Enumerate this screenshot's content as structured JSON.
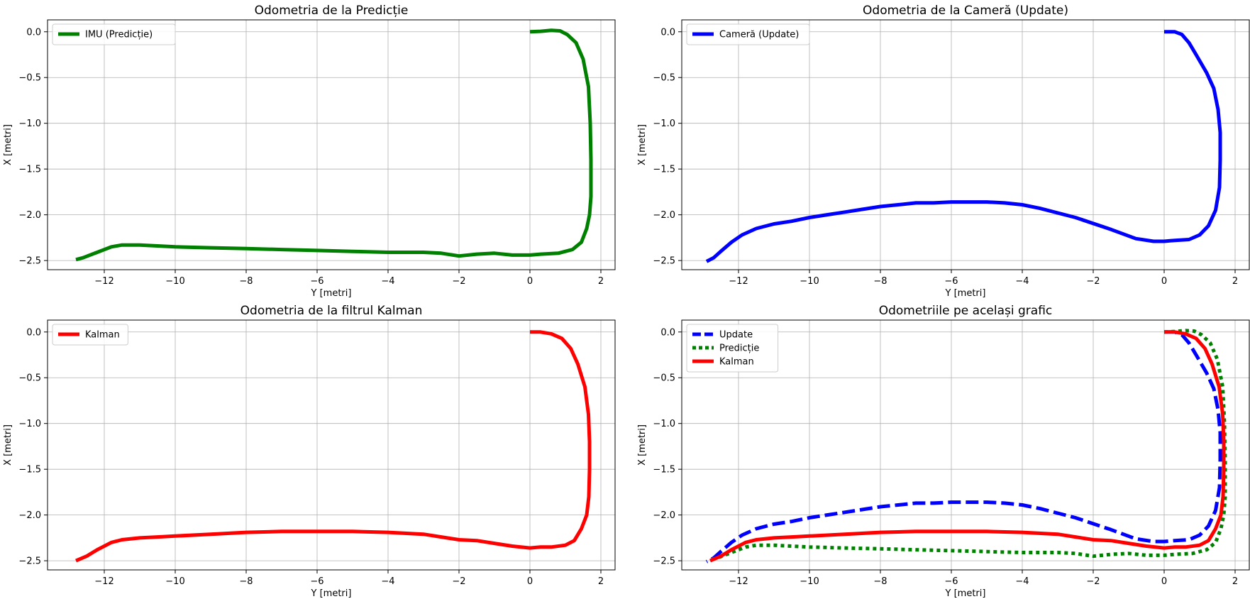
{
  "chart_data": [
    {
      "type": "line",
      "title": "Odometria de la Predicție",
      "xlabel": "Y [metri]",
      "ylabel": "X [metri]",
      "xlim": [
        -13.6,
        2.4
      ],
      "ylim": [
        -2.6,
        0.13
      ],
      "xticks": [
        -12,
        -10,
        -8,
        -6,
        -4,
        -2,
        0,
        2
      ],
      "yticks": [
        0.0,
        -0.5,
        -1.0,
        -1.5,
        -2.0,
        -2.5
      ],
      "grid": true,
      "legend_position": "upper-left",
      "series": [
        {
          "name": "IMU (Predicție)",
          "color": "#008000",
          "dash": "solid",
          "points": [
            [
              0,
              0
            ],
            [
              0.3,
              0.005
            ],
            [
              0.6,
              0.015
            ],
            [
              0.85,
              0.01
            ],
            [
              1.05,
              -0.03
            ],
            [
              1.3,
              -0.12
            ],
            [
              1.5,
              -0.3
            ],
            [
              1.65,
              -0.6
            ],
            [
              1.7,
              -1.0
            ],
            [
              1.72,
              -1.4
            ],
            [
              1.72,
              -1.8
            ],
            [
              1.68,
              -2.0
            ],
            [
              1.6,
              -2.15
            ],
            [
              1.45,
              -2.3
            ],
            [
              1.2,
              -2.38
            ],
            [
              0.8,
              -2.42
            ],
            [
              0.3,
              -2.43
            ],
            [
              0,
              -2.44
            ],
            [
              -0.5,
              -2.44
            ],
            [
              -1,
              -2.42
            ],
            [
              -1.5,
              -2.43
            ],
            [
              -2,
              -2.45
            ],
            [
              -2.5,
              -2.42
            ],
            [
              -3,
              -2.41
            ],
            [
              -4,
              -2.41
            ],
            [
              -5,
              -2.4
            ],
            [
              -6,
              -2.39
            ],
            [
              -7,
              -2.38
            ],
            [
              -8,
              -2.37
            ],
            [
              -9,
              -2.36
            ],
            [
              -10,
              -2.35
            ],
            [
              -10.5,
              -2.34
            ],
            [
              -11,
              -2.33
            ],
            [
              -11.5,
              -2.33
            ],
            [
              -11.8,
              -2.35
            ],
            [
              -12.2,
              -2.41
            ],
            [
              -12.6,
              -2.47
            ],
            [
              -12.8,
              -2.49
            ]
          ]
        }
      ]
    },
    {
      "type": "line",
      "title": "Odometria de la Cameră (Update)",
      "xlabel": "Y [metri]",
      "ylabel": "X [metri]",
      "xlim": [
        -13.6,
        2.4
      ],
      "ylim": [
        -2.6,
        0.13
      ],
      "xticks": [
        -12,
        -10,
        -8,
        -6,
        -4,
        -2,
        0,
        2
      ],
      "yticks": [
        0.0,
        -0.5,
        -1.0,
        -1.5,
        -2.0,
        -2.5
      ],
      "grid": true,
      "legend_position": "upper-left",
      "series": [
        {
          "name": "Cameră (Update)",
          "color": "#0000ff",
          "dash": "solid",
          "points": [
            [
              0,
              0
            ],
            [
              0.3,
              0
            ],
            [
              0.5,
              -0.03
            ],
            [
              0.7,
              -0.12
            ],
            [
              0.9,
              -0.25
            ],
            [
              1.2,
              -0.45
            ],
            [
              1.4,
              -0.62
            ],
            [
              1.52,
              -0.85
            ],
            [
              1.58,
              -1.1
            ],
            [
              1.58,
              -1.4
            ],
            [
              1.56,
              -1.7
            ],
            [
              1.45,
              -1.95
            ],
            [
              1.25,
              -2.12
            ],
            [
              1.0,
              -2.22
            ],
            [
              0.7,
              -2.27
            ],
            [
              0.3,
              -2.28
            ],
            [
              0,
              -2.29
            ],
            [
              -0.3,
              -2.29
            ],
            [
              -0.8,
              -2.26
            ],
            [
              -1.5,
              -2.16
            ],
            [
              -2.5,
              -2.03
            ],
            [
              -3.5,
              -1.93
            ],
            [
              -4,
              -1.89
            ],
            [
              -4.5,
              -1.87
            ],
            [
              -5,
              -1.86
            ],
            [
              -5.5,
              -1.86
            ],
            [
              -6,
              -1.86
            ],
            [
              -6.5,
              -1.87
            ],
            [
              -7,
              -1.87
            ],
            [
              -7.5,
              -1.89
            ],
            [
              -8,
              -1.91
            ],
            [
              -8.5,
              -1.94
            ],
            [
              -9,
              -1.97
            ],
            [
              -9.5,
              -2.0
            ],
            [
              -10,
              -2.03
            ],
            [
              -10.5,
              -2.07
            ],
            [
              -11,
              -2.1
            ],
            [
              -11.5,
              -2.15
            ],
            [
              -11.9,
              -2.22
            ],
            [
              -12.2,
              -2.3
            ],
            [
              -12.5,
              -2.4
            ],
            [
              -12.7,
              -2.47
            ],
            [
              -12.9,
              -2.51
            ]
          ]
        }
      ]
    },
    {
      "type": "line",
      "title": "Odometria de la filtrul Kalman",
      "xlabel": "Y [metri]",
      "ylabel": "X [metri]",
      "xlim": [
        -13.6,
        2.4
      ],
      "ylim": [
        -2.6,
        0.13
      ],
      "xticks": [
        -12,
        -10,
        -8,
        -6,
        -4,
        -2,
        0,
        2
      ],
      "yticks": [
        0.0,
        -0.5,
        -1.0,
        -1.5,
        -2.0,
        -2.5
      ],
      "grid": true,
      "legend_position": "upper-left",
      "series": [
        {
          "name": "Kalman",
          "color": "#ff0000",
          "dash": "solid",
          "points": [
            [
              0,
              0
            ],
            [
              0.3,
              0
            ],
            [
              0.6,
              -0.02
            ],
            [
              0.9,
              -0.07
            ],
            [
              1.15,
              -0.18
            ],
            [
              1.35,
              -0.35
            ],
            [
              1.55,
              -0.6
            ],
            [
              1.65,
              -0.9
            ],
            [
              1.68,
              -1.2
            ],
            [
              1.68,
              -1.5
            ],
            [
              1.66,
              -1.8
            ],
            [
              1.6,
              -2.0
            ],
            [
              1.45,
              -2.15
            ],
            [
              1.25,
              -2.28
            ],
            [
              1.0,
              -2.33
            ],
            [
              0.6,
              -2.35
            ],
            [
              0.3,
              -2.35
            ],
            [
              0,
              -2.36
            ],
            [
              -0.5,
              -2.34
            ],
            [
              -1,
              -2.31
            ],
            [
              -1.5,
              -2.28
            ],
            [
              -2,
              -2.27
            ],
            [
              -2.5,
              -2.24
            ],
            [
              -3,
              -2.21
            ],
            [
              -4,
              -2.19
            ],
            [
              -5,
              -2.18
            ],
            [
              -6,
              -2.18
            ],
            [
              -7,
              -2.18
            ],
            [
              -8,
              -2.19
            ],
            [
              -9,
              -2.21
            ],
            [
              -10,
              -2.23
            ],
            [
              -10.5,
              -2.24
            ],
            [
              -11,
              -2.25
            ],
            [
              -11.5,
              -2.27
            ],
            [
              -11.8,
              -2.3
            ],
            [
              -12.2,
              -2.38
            ],
            [
              -12.5,
              -2.45
            ],
            [
              -12.8,
              -2.5
            ]
          ]
        }
      ]
    },
    {
      "type": "line",
      "title": "Odometriile pe același grafic",
      "xlabel": "Y [metri]",
      "ylabel": "X [metri]",
      "xlim": [
        -13.6,
        2.4
      ],
      "ylim": [
        -2.6,
        0.13
      ],
      "xticks": [
        -12,
        -10,
        -8,
        -6,
        -4,
        -2,
        0,
        2
      ],
      "yticks": [
        0.0,
        -0.5,
        -1.0,
        -1.5,
        -2.0,
        -2.5
      ],
      "grid": true,
      "legend_position": "upper-left",
      "series": [
        {
          "name": "Update",
          "color": "#0000ff",
          "dash": "dashed",
          "points": [
            [
              0,
              0
            ],
            [
              0.3,
              0
            ],
            [
              0.5,
              -0.03
            ],
            [
              0.7,
              -0.12
            ],
            [
              0.9,
              -0.25
            ],
            [
              1.2,
              -0.45
            ],
            [
              1.4,
              -0.62
            ],
            [
              1.52,
              -0.85
            ],
            [
              1.58,
              -1.1
            ],
            [
              1.58,
              -1.4
            ],
            [
              1.56,
              -1.7
            ],
            [
              1.45,
              -1.95
            ],
            [
              1.25,
              -2.12
            ],
            [
              1.0,
              -2.22
            ],
            [
              0.7,
              -2.27
            ],
            [
              0.3,
              -2.28
            ],
            [
              0,
              -2.29
            ],
            [
              -0.3,
              -2.29
            ],
            [
              -0.8,
              -2.26
            ],
            [
              -1.5,
              -2.16
            ],
            [
              -2.5,
              -2.03
            ],
            [
              -3.5,
              -1.93
            ],
            [
              -4,
              -1.89
            ],
            [
              -4.5,
              -1.87
            ],
            [
              -5,
              -1.86
            ],
            [
              -5.5,
              -1.86
            ],
            [
              -6,
              -1.86
            ],
            [
              -6.5,
              -1.87
            ],
            [
              -7,
              -1.87
            ],
            [
              -7.5,
              -1.89
            ],
            [
              -8,
              -1.91
            ],
            [
              -8.5,
              -1.94
            ],
            [
              -9,
              -1.97
            ],
            [
              -9.5,
              -2.0
            ],
            [
              -10,
              -2.03
            ],
            [
              -10.5,
              -2.07
            ],
            [
              -11,
              -2.1
            ],
            [
              -11.5,
              -2.15
            ],
            [
              -11.9,
              -2.22
            ],
            [
              -12.2,
              -2.3
            ],
            [
              -12.5,
              -2.4
            ],
            [
              -12.7,
              -2.47
            ],
            [
              -12.9,
              -2.51
            ]
          ]
        },
        {
          "name": "Predicție",
          "color": "#008000",
          "dash": "dotted",
          "points": [
            [
              0,
              0
            ],
            [
              0.3,
              0.005
            ],
            [
              0.6,
              0.015
            ],
            [
              0.85,
              0.01
            ],
            [
              1.05,
              -0.03
            ],
            [
              1.3,
              -0.12
            ],
            [
              1.5,
              -0.3
            ],
            [
              1.65,
              -0.6
            ],
            [
              1.7,
              -1.0
            ],
            [
              1.72,
              -1.4
            ],
            [
              1.72,
              -1.8
            ],
            [
              1.68,
              -2.0
            ],
            [
              1.6,
              -2.15
            ],
            [
              1.45,
              -2.3
            ],
            [
              1.2,
              -2.38
            ],
            [
              0.8,
              -2.42
            ],
            [
              0.3,
              -2.43
            ],
            [
              0,
              -2.44
            ],
            [
              -0.5,
              -2.44
            ],
            [
              -1,
              -2.42
            ],
            [
              -1.5,
              -2.43
            ],
            [
              -2,
              -2.45
            ],
            [
              -2.5,
              -2.42
            ],
            [
              -3,
              -2.41
            ],
            [
              -4,
              -2.41
            ],
            [
              -5,
              -2.4
            ],
            [
              -6,
              -2.39
            ],
            [
              -7,
              -2.38
            ],
            [
              -8,
              -2.37
            ],
            [
              -9,
              -2.36
            ],
            [
              -10,
              -2.35
            ],
            [
              -10.5,
              -2.34
            ],
            [
              -11,
              -2.33
            ],
            [
              -11.5,
              -2.33
            ],
            [
              -11.8,
              -2.35
            ],
            [
              -12.2,
              -2.41
            ],
            [
              -12.6,
              -2.47
            ],
            [
              -12.8,
              -2.49
            ]
          ]
        },
        {
          "name": "Kalman",
          "color": "#ff0000",
          "dash": "solid",
          "points": [
            [
              0,
              0
            ],
            [
              0.3,
              0
            ],
            [
              0.6,
              -0.02
            ],
            [
              0.9,
              -0.07
            ],
            [
              1.15,
              -0.18
            ],
            [
              1.35,
              -0.35
            ],
            [
              1.55,
              -0.6
            ],
            [
              1.65,
              -0.9
            ],
            [
              1.68,
              -1.2
            ],
            [
              1.68,
              -1.5
            ],
            [
              1.66,
              -1.8
            ],
            [
              1.6,
              -2.0
            ],
            [
              1.45,
              -2.15
            ],
            [
              1.25,
              -2.28
            ],
            [
              1.0,
              -2.33
            ],
            [
              0.6,
              -2.35
            ],
            [
              0.3,
              -2.35
            ],
            [
              0,
              -2.36
            ],
            [
              -0.5,
              -2.34
            ],
            [
              -1,
              -2.31
            ],
            [
              -1.5,
              -2.28
            ],
            [
              -2,
              -2.27
            ],
            [
              -2.5,
              -2.24
            ],
            [
              -3,
              -2.21
            ],
            [
              -4,
              -2.19
            ],
            [
              -5,
              -2.18
            ],
            [
              -6,
              -2.18
            ],
            [
              -7,
              -2.18
            ],
            [
              -8,
              -2.19
            ],
            [
              -9,
              -2.21
            ],
            [
              -10,
              -2.23
            ],
            [
              -10.5,
              -2.24
            ],
            [
              -11,
              -2.25
            ],
            [
              -11.5,
              -2.27
            ],
            [
              -11.8,
              -2.3
            ],
            [
              -12.2,
              -2.38
            ],
            [
              -12.5,
              -2.45
            ],
            [
              -12.8,
              -2.5
            ]
          ]
        }
      ]
    }
  ]
}
